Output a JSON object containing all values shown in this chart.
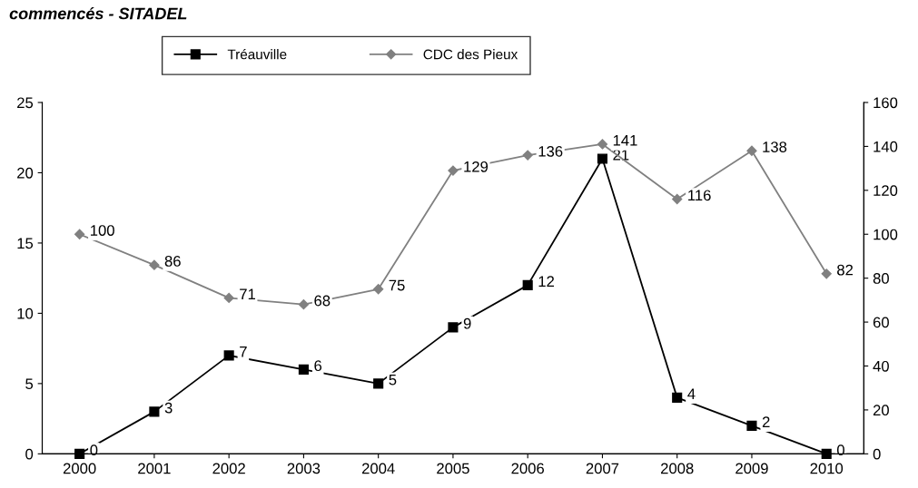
{
  "chart_data": {
    "type": "line",
    "annotations": [
      "commencés - SITADEL"
    ],
    "categories": [
      "2000",
      "2001",
      "2002",
      "2003",
      "2004",
      "2005",
      "2006",
      "2007",
      "2008",
      "2009",
      "2010"
    ],
    "series": [
      {
        "name": "Tréauville",
        "color": "#000000",
        "marker": "square",
        "values": [
          0,
          3,
          7,
          6,
          5,
          9,
          12,
          21,
          4,
          2,
          0
        ]
      },
      {
        "name": "CDC des Pieux",
        "color": "#808080",
        "marker": "diamond",
        "axis": "y2",
        "values": [
          100,
          86,
          71,
          68,
          75,
          129,
          136,
          141,
          116,
          138,
          82
        ]
      }
    ],
    "ylim": [
      0,
      25
    ],
    "yticks": [
      0,
      5,
      10,
      15,
      20,
      25
    ],
    "y2lim": [
      0,
      160
    ],
    "y2ticks": [
      0,
      20,
      40,
      60,
      80,
      100,
      120,
      140,
      160
    ],
    "data_labels": true,
    "grid": false,
    "legend": "top",
    "line_style": "solid"
  }
}
